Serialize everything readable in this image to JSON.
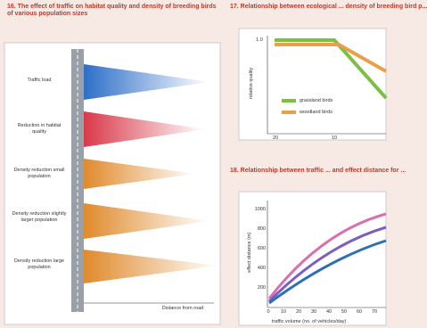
{
  "figures": [
    {
      "title": "16. The effect of traffic on habitat quality and density of breeding birds of various population sizes",
      "labels": [
        "Traffic load",
        "Reduction in habitat quality",
        "Density reduction small population",
        "Density reduction slightly larger population",
        "Density reduction large population"
      ],
      "axis_label": "Distance from road"
    },
    {
      "title": "17. Relationship between ecological ... density of breeding bird p...",
      "y_label": "relative quality",
      "y_ticks": [
        "1.0"
      ],
      "x_ticks": [
        "20",
        "10"
      ],
      "legend": [
        "grassland birds",
        "woodland birds"
      ]
    },
    {
      "title": "18. Relationship between traffic ... and effect distance for ...",
      "y_label": "effect distance (m)",
      "y_ticks": [
        "1000",
        "800",
        "600",
        "400",
        "200"
      ],
      "x_ticks": [
        "0",
        "10",
        "20",
        "30",
        "40",
        "50",
        "60",
        "70"
      ],
      "x_label": "traffic volume (no. of vehicles/day)"
    }
  ]
}
